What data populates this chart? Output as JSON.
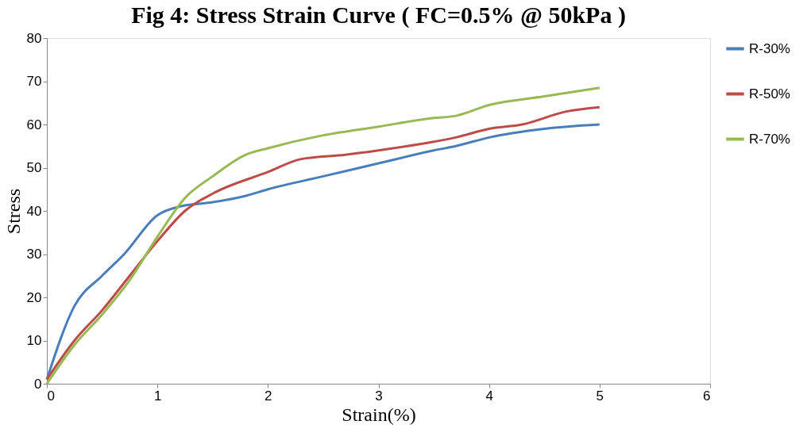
{
  "chart_data": {
    "type": "line",
    "title": "Fig 4: Stress Strain Curve ( FC=0.5% @ 50kPa )",
    "xlabel": "Strain(%)",
    "ylabel": "Stress",
    "xlim": [
      0,
      6
    ],
    "xticks": [
      0,
      1,
      2,
      3,
      4,
      5,
      6
    ],
    "ylim": [
      0,
      80
    ],
    "yticks": [
      0,
      10,
      20,
      30,
      40,
      50,
      60,
      70,
      80
    ],
    "grid": false,
    "legend": "right",
    "marker": "none",
    "line_style": "solid",
    "series": [
      {
        "name": "R-30%",
        "color": "#4a7ebb",
        "x": [
          0,
          0.25,
          0.5,
          0.7,
          1.0,
          1.2,
          1.5,
          1.8,
          2.0,
          2.5,
          3.0,
          3.5,
          3.7,
          4.0,
          4.5,
          5.0
        ],
        "values": [
          1,
          18,
          25,
          30,
          39,
          41,
          42,
          43.5,
          45,
          48,
          51,
          54,
          55,
          57,
          59,
          60
        ]
      },
      {
        "name": "R-50%",
        "color": "#be4b48",
        "x": [
          0,
          0.25,
          0.5,
          0.75,
          1.0,
          1.25,
          1.5,
          2.0,
          2.3,
          2.7,
          3.0,
          3.5,
          3.7,
          4.0,
          4.3,
          4.7,
          5.0
        ],
        "values": [
          1,
          10,
          17,
          25,
          33,
          40,
          44,
          49,
          52,
          53,
          54,
          56,
          57,
          59,
          60,
          63,
          64
        ]
      },
      {
        "name": "R-70%",
        "color": "#98b954",
        "x": [
          0,
          0.25,
          0.5,
          0.75,
          1.0,
          1.25,
          1.5,
          1.8,
          2.0,
          2.5,
          3.0,
          3.5,
          3.7,
          4.0,
          4.5,
          5.0
        ],
        "values": [
          0,
          9,
          16,
          24,
          34,
          43,
          48,
          53,
          54.5,
          57.5,
          59.5,
          61.5,
          62,
          64.5,
          66.5,
          68.5
        ]
      }
    ]
  }
}
